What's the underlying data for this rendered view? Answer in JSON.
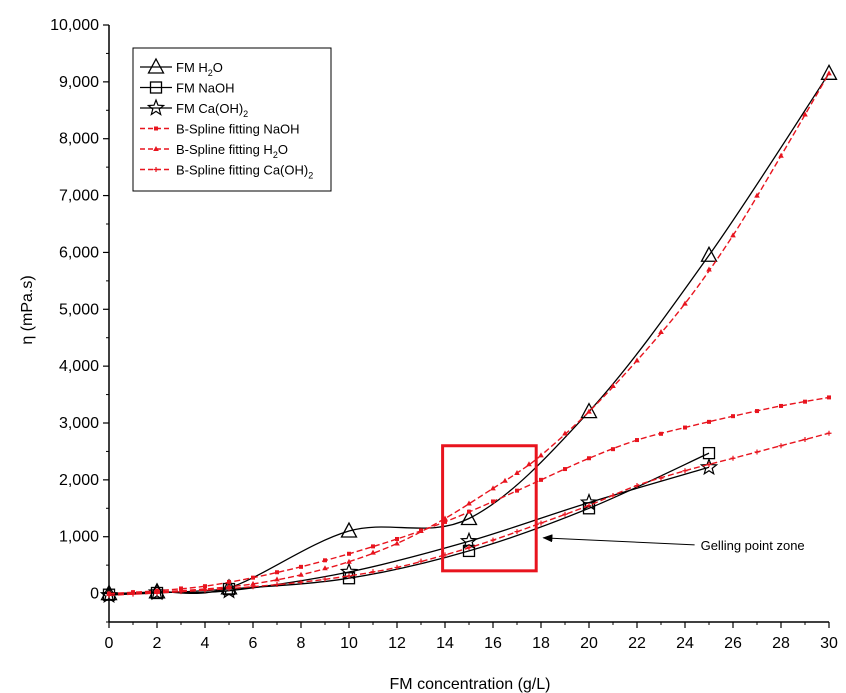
{
  "chart_data": {
    "type": "line",
    "xlabel": "FM concentration (g/L)",
    "ylabel": "η (mPa.s)",
    "xlim": [
      0,
      30
    ],
    "ylim": [
      -500,
      10000
    ],
    "xticks": [
      0,
      2,
      4,
      6,
      8,
      10,
      12,
      14,
      16,
      18,
      20,
      22,
      24,
      26,
      28,
      30
    ],
    "xtick_labels": [
      "0",
      "2",
      "4",
      "6",
      "8",
      "10",
      "12",
      "14",
      "16",
      "18",
      "20",
      "22",
      "24",
      "26",
      "28",
      "30"
    ],
    "yticks": [
      0,
      1000,
      2000,
      3000,
      4000,
      5000,
      6000,
      7000,
      8000,
      9000,
      10000
    ],
    "ytick_labels": [
      "0",
      "1,000",
      "2,000",
      "3,000",
      "4,000",
      "5,000",
      "6,000",
      "7,000",
      "8,000",
      "9,000",
      "10,000"
    ],
    "grid": false,
    "legend_position": "top-left",
    "series": [
      {
        "name": "FM H2O",
        "legend_label": {
          "base": "FM H",
          "sub": "2",
          "tail": "O"
        },
        "marker": "triangle",
        "color": "#000000",
        "x": [
          0,
          2,
          5,
          10,
          15,
          20,
          25,
          30
        ],
        "y": [
          0,
          30,
          100,
          1100,
          1320,
          3200,
          5950,
          9150
        ]
      },
      {
        "name": "FM NaOH",
        "legend_label": {
          "base": "FM NaOH",
          "sub": "",
          "tail": ""
        },
        "marker": "square",
        "color": "#000000",
        "x": [
          0,
          2,
          5,
          10,
          15,
          20,
          25
        ],
        "y": [
          -20,
          10,
          80,
          270,
          750,
          1500,
          2470
        ]
      },
      {
        "name": "FM Ca(OH)2",
        "legend_label": {
          "base": "FM Ca(OH)",
          "sub": "2",
          "tail": ""
        },
        "marker": "star",
        "color": "#000000",
        "x": [
          0,
          2,
          5,
          10,
          15,
          20,
          25
        ],
        "y": [
          -30,
          20,
          50,
          380,
          920,
          1600,
          2220
        ]
      },
      {
        "name": "B-Spline fitting NaOH",
        "legend_label": {
          "base": "B-Spline fitting NaOH",
          "sub": "",
          "tail": ""
        },
        "marker": "small-square",
        "color": "#e8141e",
        "dashed": true,
        "x": [
          0,
          2,
          4,
          6,
          8,
          10,
          12,
          14,
          16,
          18,
          20,
          22,
          24,
          26,
          28,
          30
        ],
        "y": [
          0,
          50,
          130,
          280,
          470,
          700,
          960,
          1260,
          1620,
          2000,
          2380,
          2700,
          2920,
          3120,
          3300,
          3450
        ]
      },
      {
        "name": "B-Spline fitting H2O",
        "legend_label": {
          "base": "B-Spline fitting H",
          "sub": "2",
          "tail": "O"
        },
        "marker": "small-triangle",
        "color": "#e8141e",
        "dashed": true,
        "x": [
          0,
          2,
          4,
          6,
          8,
          10,
          12,
          14,
          16,
          17,
          18,
          20,
          22,
          24,
          26,
          28,
          30
        ],
        "y": [
          0,
          30,
          80,
          170,
          330,
          560,
          880,
          1320,
          1850,
          2120,
          2430,
          3200,
          4100,
          5100,
          6300,
          7700,
          9150
        ]
      },
      {
        "name": "B-Spline fitting Ca(OH)2",
        "legend_label": {
          "base": "B-Spline fitting Ca(OH)",
          "sub": "2",
          "tail": ""
        },
        "marker": "small-star",
        "color": "#e8141e",
        "dashed": true,
        "x": [
          0,
          2,
          4,
          6,
          8,
          10,
          12,
          14,
          16,
          18,
          20,
          22,
          24,
          26,
          28,
          30
        ],
        "y": [
          -30,
          10,
          60,
          120,
          200,
          310,
          460,
          680,
          940,
          1240,
          1550,
          1900,
          2160,
          2380,
          2600,
          2820
        ]
      }
    ],
    "annotation": {
      "text": "Gelling point zone",
      "box_x": [
        13.9,
        17.8
      ],
      "box_y": [
        400,
        2600
      ],
      "box_color": "#e8141e",
      "arrow_from_x": 24.4,
      "arrow_to_x": 18.1,
      "arrow_y": 980
    }
  }
}
